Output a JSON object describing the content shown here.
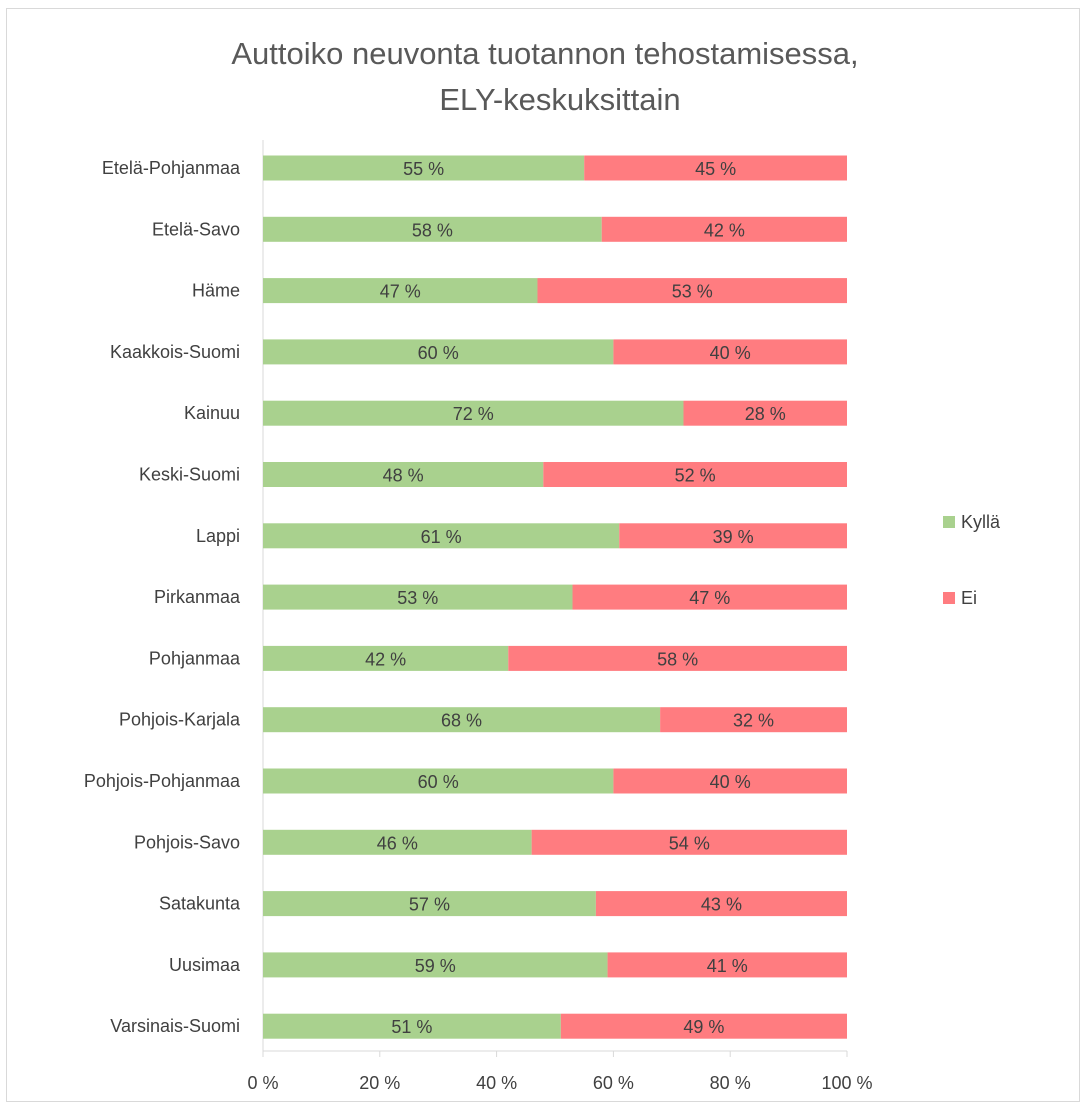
{
  "chart_data": {
    "type": "bar",
    "orientation": "horizontal",
    "stacked": "percent",
    "title": [
      "Auttoiko neuvonta tuotannon tehostamisessa,",
      "ELY-keskuksittain"
    ],
    "categories": [
      "Etelä-Pohjanmaa",
      "Etelä-Savo",
      "Häme",
      "Kaakkois-Suomi",
      "Kainuu",
      "Keski-Suomi",
      "Lappi",
      "Pirkanmaa",
      "Pohjanmaa",
      "Pohjois-Karjala",
      "Pohjois-Pohjanmaa",
      "Pohjois-Savo",
      "Satakunta",
      "Uusimaa",
      "Varsinais-Suomi"
    ],
    "series": [
      {
        "name": "Kyllä",
        "color": "#a9d18e",
        "values": [
          55,
          58,
          47,
          60,
          72,
          48,
          61,
          53,
          42,
          68,
          60,
          46,
          57,
          59,
          51
        ]
      },
      {
        "name": "Ei",
        "color": "#ff7c80",
        "values": [
          45,
          42,
          53,
          40,
          28,
          52,
          39,
          47,
          58,
          32,
          40,
          54,
          43,
          41,
          49
        ]
      }
    ],
    "x_ticks": [
      "0 %",
      "20 %",
      "40 %",
      "60 %",
      "80 %",
      "100 %"
    ],
    "xlim": [
      0,
      100
    ],
    "value_suffix": " %",
    "legend_position": "right",
    "grid": false
  }
}
